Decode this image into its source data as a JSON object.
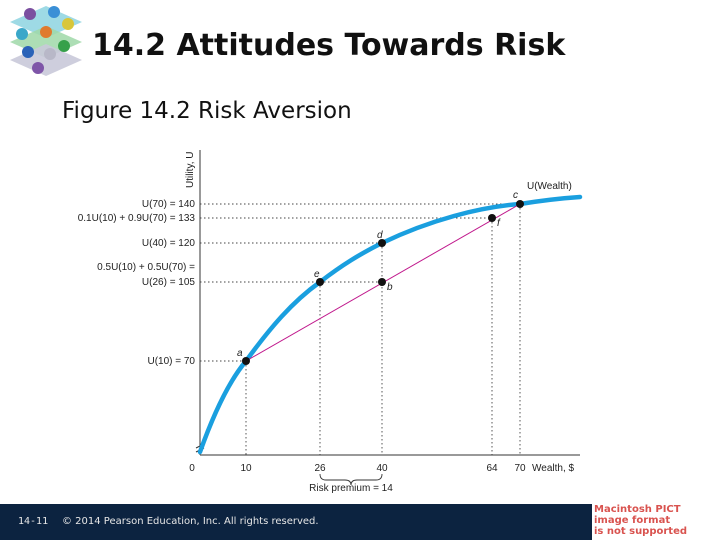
{
  "slide": {
    "title": "14.2 Attitudes Towards Risk",
    "subtitle": "Figure 14.2  Risk Aversion"
  },
  "footer": {
    "slide_number": "14-11",
    "copyright": "© 2014 Pearson Education, Inc. All rights reserved."
  },
  "placeholder_image": {
    "line1": "Macintosh PICT",
    "line2": "image format",
    "line3": "is not supported"
  },
  "figure": {
    "y_axis_label": "Utility, U",
    "x_axis_label": "Wealth, $",
    "curve_label": "U(Wealth)",
    "x_ticks": [
      "0",
      "10",
      "26",
      "40",
      "64",
      "70"
    ],
    "y_labels": [
      "U(70) = 140",
      "0.1U(10) + 0.9U(70) = 133",
      "U(40) = 120",
      "0.5U(10) + 0.5U(70) =",
      "U(26) = 105",
      "U(10) = 70"
    ],
    "point_labels": [
      "a",
      "b",
      "c",
      "d",
      "e",
      "f"
    ],
    "risk_premium_label": "Risk premium = 14",
    "colors": {
      "curve": "#1a9fdf",
      "chord": "#c0188c",
      "axis": "#333333"
    },
    "points": [
      {
        "label": "a",
        "wealth": 10,
        "utility": 70,
        "on_curve": true
      },
      {
        "label": "e",
        "wealth": 26,
        "utility": 105,
        "on_curve": true
      },
      {
        "label": "d",
        "wealth": 40,
        "utility": 120,
        "on_curve": true
      },
      {
        "label": "b",
        "wealth": 40,
        "utility": 105,
        "on_curve": false
      },
      {
        "label": "f",
        "wealth": 64,
        "utility": 133,
        "on_curve": false
      },
      {
        "label": "c",
        "wealth": 70,
        "utility": 140,
        "on_curve": true
      }
    ]
  }
}
